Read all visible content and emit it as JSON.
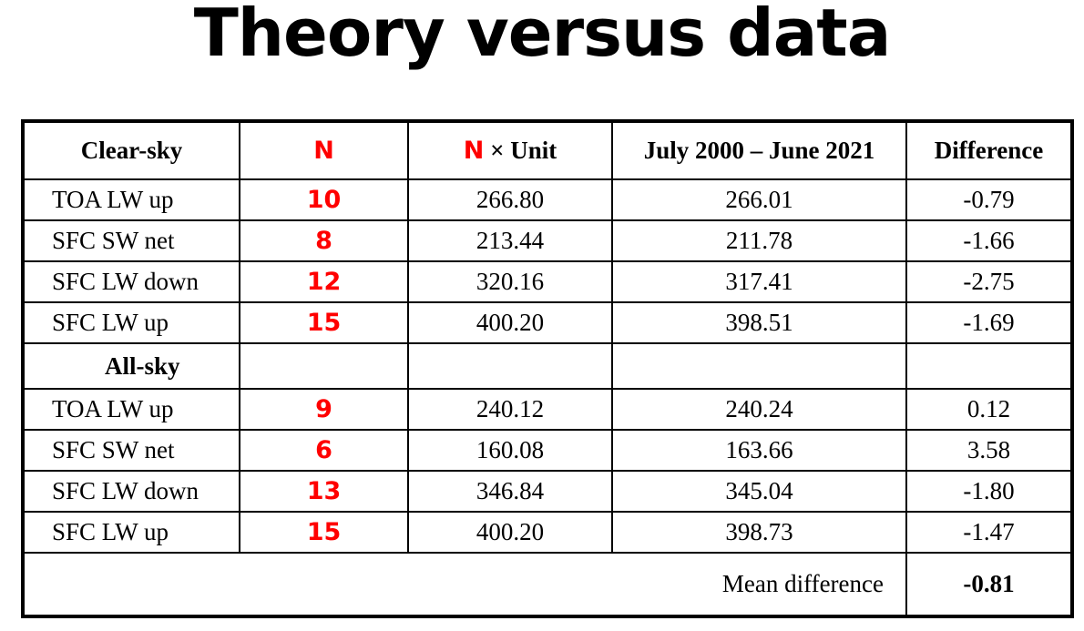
{
  "title": "Theory versus data",
  "colors": {
    "accent_red": "#ff0000",
    "text": "#000000",
    "background": "#ffffff"
  },
  "header": {
    "col1": "Clear-sky",
    "col2": "N",
    "col3_n": "N",
    "col3_rest": " × Unit",
    "col4": "July 2000 – June 2021",
    "col5": "Difference"
  },
  "clear_sky_rows": [
    {
      "label": "TOA LW up",
      "n": "10",
      "n_unit": "266.80",
      "obs": "266.01",
      "diff": "-0.79"
    },
    {
      "label": "SFC SW net",
      "n": "8",
      "n_unit": "213.44",
      "obs": "211.78",
      "diff": "-1.66"
    },
    {
      "label": "SFC LW down",
      "n": "12",
      "n_unit": "320.16",
      "obs": "317.41",
      "diff": "-2.75"
    },
    {
      "label": "SFC LW up",
      "n": "15",
      "n_unit": "400.20",
      "obs": "398.51",
      "diff": "-1.69"
    }
  ],
  "all_sky_label": "All-sky",
  "all_sky_rows": [
    {
      "label": "TOA LW up",
      "n": "9",
      "n_unit": "240.12",
      "obs": "240.24",
      "diff": "0.12"
    },
    {
      "label": "SFC SW net",
      "n": "6",
      "n_unit": "160.08",
      "obs": "163.66",
      "diff": "3.58"
    },
    {
      "label": "SFC LW down",
      "n": "13",
      "n_unit": "346.84",
      "obs": "345.04",
      "diff": "-1.80"
    },
    {
      "label": "SFC LW up",
      "n": "15",
      "n_unit": "400.20",
      "obs": "398.73",
      "diff": "-1.47"
    }
  ],
  "mean": {
    "label": "Mean difference",
    "value": "-0.81"
  }
}
